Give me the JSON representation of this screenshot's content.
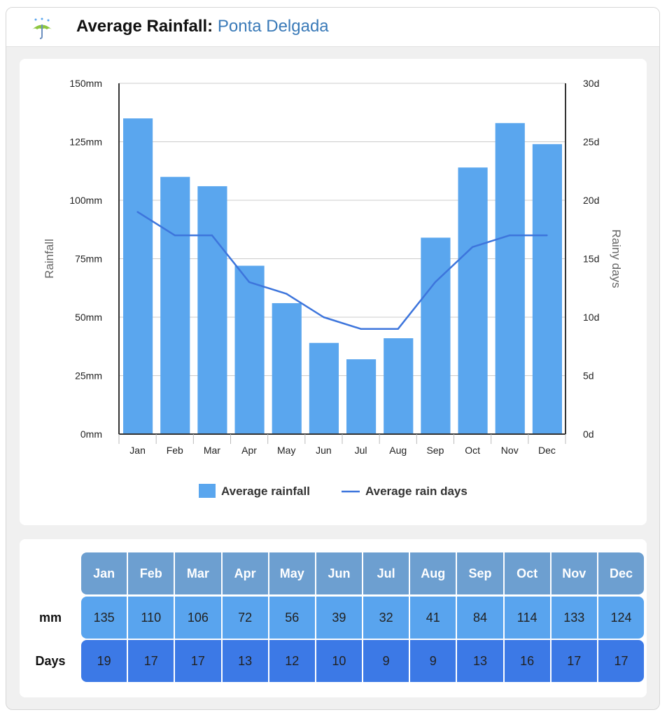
{
  "header": {
    "title_label": "Average Rainfall:",
    "city": "Ponta Delgada",
    "icon": "umbrella-rain-icon"
  },
  "chart_data": {
    "type": "bar",
    "categories": [
      "Jan",
      "Feb",
      "Mar",
      "Apr",
      "May",
      "Jun",
      "Jul",
      "Aug",
      "Sep",
      "Oct",
      "Nov",
      "Dec"
    ],
    "series": [
      {
        "name": "Average rainfall",
        "type": "bar",
        "axis": "left",
        "values": [
          135,
          110,
          106,
          72,
          56,
          39,
          32,
          41,
          84,
          114,
          133,
          124
        ]
      },
      {
        "name": "Average rain days",
        "type": "line",
        "axis": "right",
        "values": [
          19,
          17,
          17,
          13,
          12,
          10,
          9,
          9,
          13,
          16,
          17,
          17
        ]
      }
    ],
    "ylabel": "Rainfall",
    "y2label": "Rainy days",
    "ylim": [
      0,
      150
    ],
    "y2lim": [
      0,
      30
    ],
    "yticks": [
      "0mm",
      "25mm",
      "50mm",
      "75mm",
      "100mm",
      "125mm",
      "150mm"
    ],
    "y2ticks": [
      "0d",
      "5d",
      "10d",
      "15d",
      "20d",
      "25d",
      "30d"
    ],
    "grid": true,
    "legend_position": "bottom",
    "colors": {
      "bar": "#5aa6ee",
      "line": "#3d75dc",
      "grid": "#cccccc",
      "axis": "#333333"
    }
  },
  "table": {
    "header": [
      "Jan",
      "Feb",
      "Mar",
      "Apr",
      "May",
      "Jun",
      "Jul",
      "Aug",
      "Sep",
      "Oct",
      "Nov",
      "Dec"
    ],
    "rows": [
      {
        "label": "mm",
        "values": [
          "135",
          "110",
          "106",
          "72",
          "56",
          "39",
          "32",
          "41",
          "84",
          "114",
          "133",
          "124"
        ]
      },
      {
        "label": "Days",
        "values": [
          "19",
          "17",
          "17",
          "13",
          "12",
          "10",
          "9",
          "9",
          "13",
          "16",
          "17",
          "17"
        ]
      }
    ]
  }
}
